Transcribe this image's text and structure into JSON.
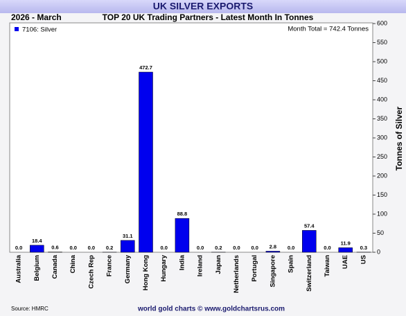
{
  "header": {
    "banner": "UK SILVER EXPORTS",
    "period": "2026 - March"
  },
  "chart_data": {
    "type": "bar",
    "title": "TOP 20 UK Trading Partners - Latest Month In Tonnes",
    "annotation": "Month Total = 742.4 Tonnes",
    "y_axis_label": "Tonnes of Silver",
    "categories": [
      "Australia",
      "Belgium",
      "Canada",
      "China",
      "Czech Rep",
      "France",
      "Germany",
      "Hong Kong",
      "Hungary",
      "India",
      "Ireland",
      "Japan",
      "Netherlands",
      "Portugal",
      "Singapore",
      "Spain",
      "Switzerland",
      "Taiwan",
      "UAE",
      "US"
    ],
    "series": [
      {
        "name": "7106: Silver",
        "color": "#0000ee",
        "values": [
          0.0,
          18.4,
          0.6,
          0.0,
          0.0,
          0.2,
          31.1,
          472.7,
          0.0,
          88.8,
          0.0,
          0.2,
          0.0,
          0.0,
          2.8,
          0.0,
          57.4,
          0.0,
          11.9,
          0.3
        ],
        "value_labels": [
          "0.0",
          "18.4",
          "0.6",
          "0.0",
          "0.0",
          "0.2",
          "31.1",
          "472.7",
          "0.0",
          "88.8",
          "0.0",
          "0.2",
          "0.0",
          "0.0",
          "2.8",
          "0.0",
          "57.4",
          "0.0",
          "11.9",
          "0.3"
        ]
      }
    ],
    "ylim": [
      0,
      600
    ],
    "yticks": [
      0,
      50,
      100,
      150,
      200,
      250,
      300,
      350,
      400,
      450,
      500,
      550,
      600
    ],
    "grid": false,
    "legend": "top-left"
  },
  "footer": {
    "source": "Source: HMRC",
    "credit": "world gold charts © www.goldchartsrus.com"
  }
}
